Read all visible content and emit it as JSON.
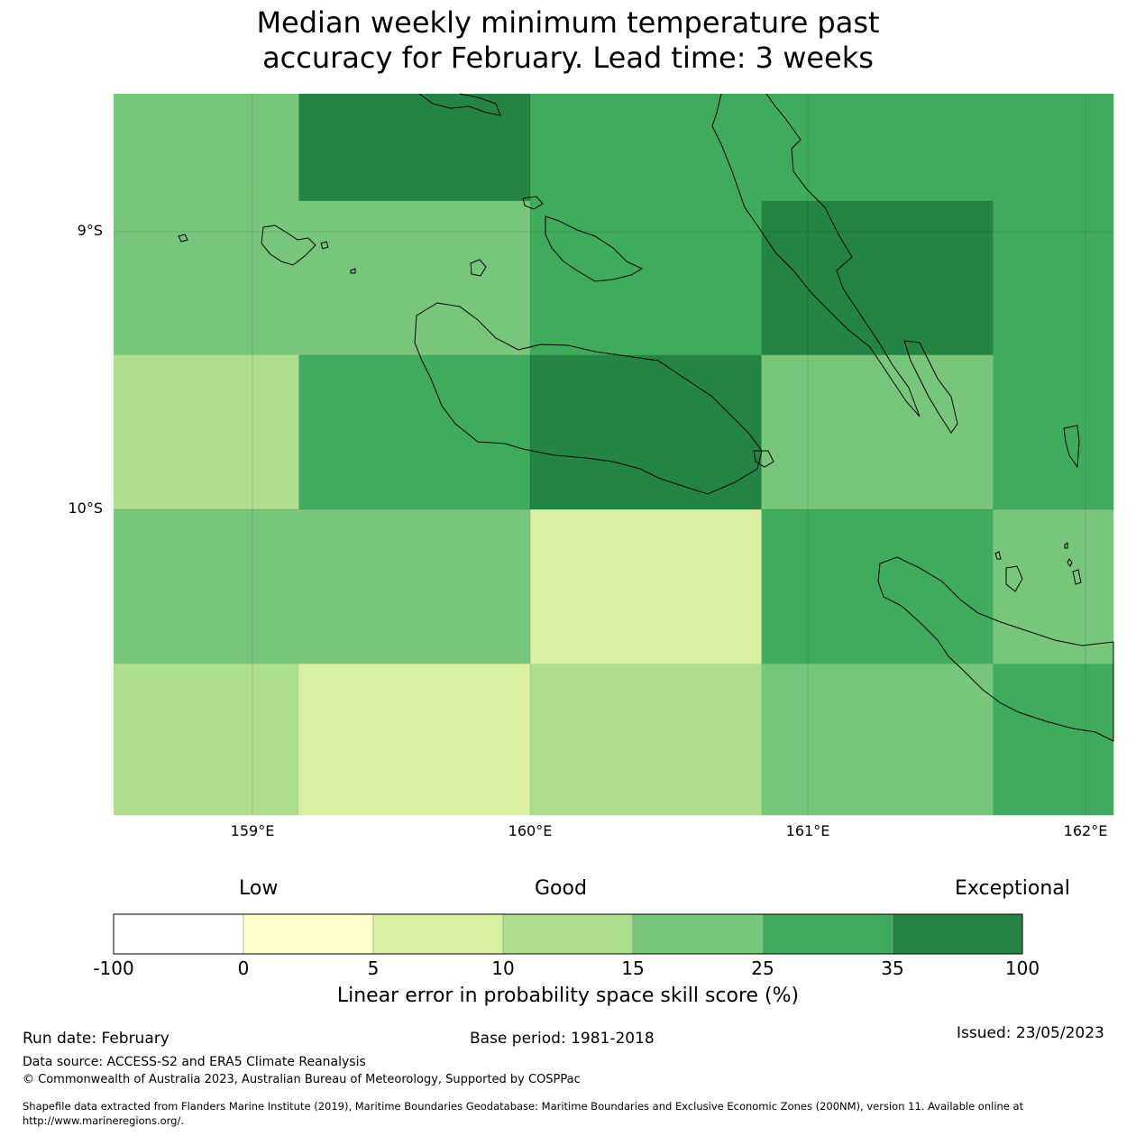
{
  "title": {
    "line1": "Median weekly minimum temperature past",
    "line2": "accuracy for February. Lead time: 3 weeks"
  },
  "map": {
    "lon_range": [
      158.5,
      162.1
    ],
    "lat_range": [
      -8.5,
      -11.1
    ],
    "lat_ticks": [
      {
        "value": -9,
        "label": "9°S"
      },
      {
        "value": -10,
        "label": "10°S"
      }
    ],
    "lon_ticks": [
      {
        "value": 159,
        "label": "159°E"
      },
      {
        "value": 160,
        "label": "160°E"
      },
      {
        "value": 161,
        "label": "161°E"
      },
      {
        "value": 162,
        "label": "162°E"
      }
    ],
    "col_edges": [
      158.5,
      159.167,
      160.0,
      160.833,
      161.667,
      162.1
    ],
    "row_edges": [
      -8.5,
      -8.889,
      -9.444,
      -10.0,
      -10.556,
      -11.1
    ],
    "cells": [
      [
        4,
        6,
        5,
        5,
        5
      ],
      [
        4,
        4,
        5,
        6,
        5
      ],
      [
        3,
        5,
        6,
        4,
        5
      ],
      [
        4,
        4,
        2,
        5,
        4
      ],
      [
        3,
        2,
        3,
        4,
        5
      ]
    ]
  },
  "colorbar": {
    "categories": {
      "low": "Low",
      "good": "Good",
      "exceptional": "Exceptional"
    },
    "colors": [
      "#ffffff",
      "#ffffcc",
      "#d9f0a3",
      "#addd8e",
      "#78c679",
      "#41ab5d",
      "#238443"
    ],
    "ticks": [
      "-100",
      "0",
      "5",
      "10",
      "15",
      "25",
      "35",
      "100"
    ],
    "label": "Linear error in probability space skill score (%)"
  },
  "footer": {
    "run_date": "Run date: February",
    "base_period": "Base period: 1981-2018",
    "issued": "Issued: 23/05/2023",
    "data_source": "Data source: ACCESS-S2 and ERA5 Climate Reanalysis",
    "copyright": "© Commonwealth of Australia 2023, Australian Bureau of Meteorology, Supported by COSPPac",
    "shapefile_line1": "Shapefile data extracted from Flanders Marine Institute (2019), Maritime Boundaries Geodatabase: Maritime Boundaries and Exclusive Economic Zones (200NM), version 11. Available online at",
    "shapefile_line2": "http://www.marineregions.org/."
  }
}
